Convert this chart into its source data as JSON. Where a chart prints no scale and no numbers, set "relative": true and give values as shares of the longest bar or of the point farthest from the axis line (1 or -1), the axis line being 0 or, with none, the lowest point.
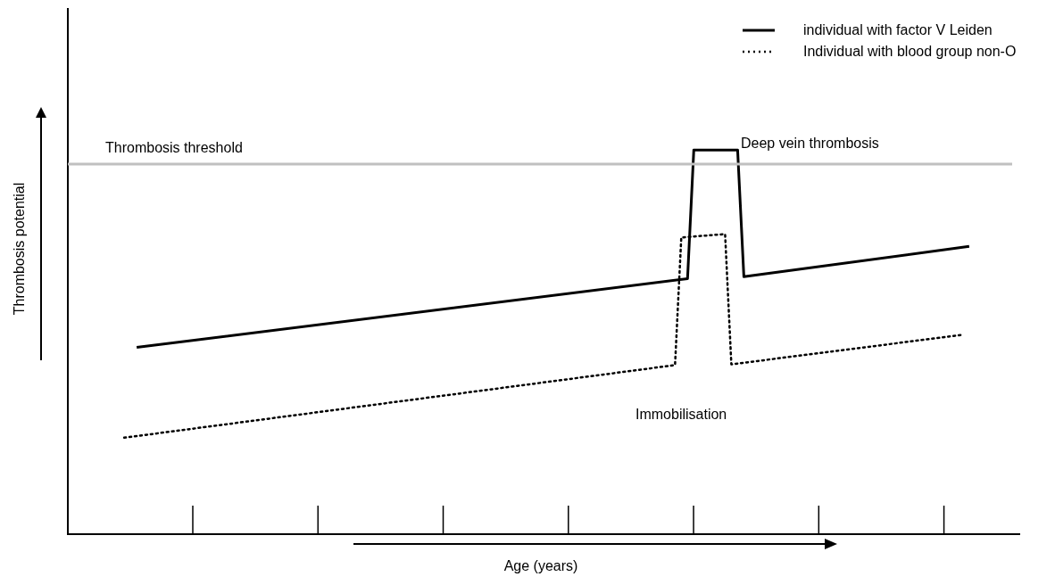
{
  "chart_data": {
    "type": "line",
    "relative": true,
    "xlabel": "Age (years)",
    "ylabel": "Thrombosis potential",
    "categories": [
      null,
      null,
      null,
      null,
      null,
      null,
      null,
      null,
      null,
      null,
      null,
      null,
      null,
      null,
      null,
      null,
      null,
      null,
      null,
      null,
      null,
      null,
      null,
      null,
      null,
      null,
      null,
      null,
      null,
      null,
      null,
      null,
      null,
      null,
      null,
      null,
      null,
      null,
      null,
      null,
      null,
      null,
      null,
      null,
      null,
      null,
      null,
      null,
      null,
      null,
      null,
      null,
      null,
      null,
      null,
      null,
      null,
      null,
      null,
      null,
      null,
      null,
      null,
      null,
      null,
      null,
      null,
      null,
      null,
      null,
      null,
      null,
      null,
      null,
      null,
      null,
      null,
      null,
      null,
      null,
      null,
      null,
      null,
      null,
      null,
      null,
      null,
      null,
      null,
      null,
      null,
      null,
      null,
      null,
      null,
      null,
      null,
      null,
      null,
      null,
      null,
      null,
      null,
      null,
      null,
      null,
      null,
      null,
      null,
      null,
      null,
      null,
      null,
      null,
      null,
      null,
      null,
      null,
      null,
      null,
      null,
      null,
      null,
      null,
      null,
      null,
      null,
      null,
      null,
      null,
      null,
      null,
      null,
      null,
      null,
      null,
      null,
      null,
      null,
      null,
      null,
      null,
      null,
      null,
      null,
      null,
      null,
      null,
      null,
      null,
      null,
      null,
      null
    ],
    "grid": false,
    "marker": "none",
    "legend": "top right",
    "series": [
      {
        "name": "individual with factor V Leiden",
        "color": "#000000",
        "line_style": "solid",
        "values": [
          null,
          null,
          null,
          null,
          null,
          null,
          null,
          null,
          null,
          null,
          null,
          0.486,
          null,
          null,
          null,
          null,
          null,
          null,
          null,
          null,
          null,
          null,
          null,
          null,
          null,
          null,
          null,
          null,
          null,
          null,
          null,
          null,
          null,
          null,
          null,
          null,
          null,
          null,
          null,
          null,
          null,
          null,
          null,
          null,
          null,
          null,
          null,
          null,
          null,
          null,
          null,
          null,
          null,
          null,
          null,
          null,
          null,
          null,
          null,
          null,
          null,
          null,
          null,
          null,
          null,
          null,
          null,
          null,
          null,
          null,
          null,
          null,
          null,
          null,
          null,
          null,
          null,
          null,
          null,
          null,
          null,
          null,
          null,
          null,
          null,
          null,
          null,
          null,
          null,
          null,
          null,
          null,
          null,
          null,
          null,
          null,
          null,
          null,
          null,
          0.665,
          1,
          null,
          null,
          null,
          null,
          null,
          null,
          1,
          0.67,
          null,
          null,
          null,
          null,
          null,
          null,
          null,
          null,
          null,
          null,
          null,
          null,
          null,
          null,
          null,
          null,
          null,
          null,
          null,
          null,
          null,
          null,
          null,
          null,
          null,
          null,
          null,
          null,
          null,
          null,
          null,
          null,
          null,
          null,
          null,
          0.749,
          null,
          null,
          null,
          null,
          null,
          null,
          null,
          null
        ]
      },
      {
        "name": "Individual with blood group non-O",
        "color": "#000000",
        "line_style": "dotted",
        "values": [
          null,
          null,
          null,
          null,
          null,
          null,
          null,
          null,
          null,
          0.251,
          null,
          null,
          null,
          null,
          null,
          null,
          null,
          null,
          null,
          null,
          null,
          null,
          null,
          null,
          null,
          null,
          null,
          null,
          null,
          null,
          null,
          null,
          null,
          null,
          null,
          null,
          null,
          null,
          null,
          null,
          null,
          null,
          null,
          null,
          null,
          null,
          null,
          null,
          null,
          null,
          null,
          null,
          null,
          null,
          null,
          null,
          null,
          null,
          null,
          null,
          null,
          null,
          null,
          null,
          null,
          null,
          null,
          null,
          null,
          null,
          null,
          null,
          null,
          null,
          null,
          null,
          null,
          null,
          null,
          null,
          null,
          null,
          null,
          null,
          null,
          null,
          null,
          null,
          null,
          null,
          null,
          null,
          null,
          null,
          null,
          null,
          null,
          0.44,
          0.772,
          null,
          null,
          null,
          null,
          null,
          null,
          0.781,
          0.442,
          null,
          null,
          null,
          null,
          null,
          null,
          null,
          null,
          null,
          null,
          null,
          null,
          null,
          null,
          null,
          null,
          null,
          null,
          null,
          null,
          null,
          null,
          null,
          null,
          null,
          null,
          null,
          null,
          null,
          null,
          null,
          null,
          null,
          null,
          null,
          null,
          0.519,
          null,
          null,
          null,
          null,
          null,
          null,
          null,
          null,
          null
        ]
      }
    ],
    "ref_lines": [
      {
        "axis": "y",
        "value": 0.963,
        "label": "Thrombosis threshold",
        "color": "#c0c0c0"
      }
    ],
    "annotations": [
      "Deep vein thrombosis",
      "Immobilisation"
    ]
  }
}
